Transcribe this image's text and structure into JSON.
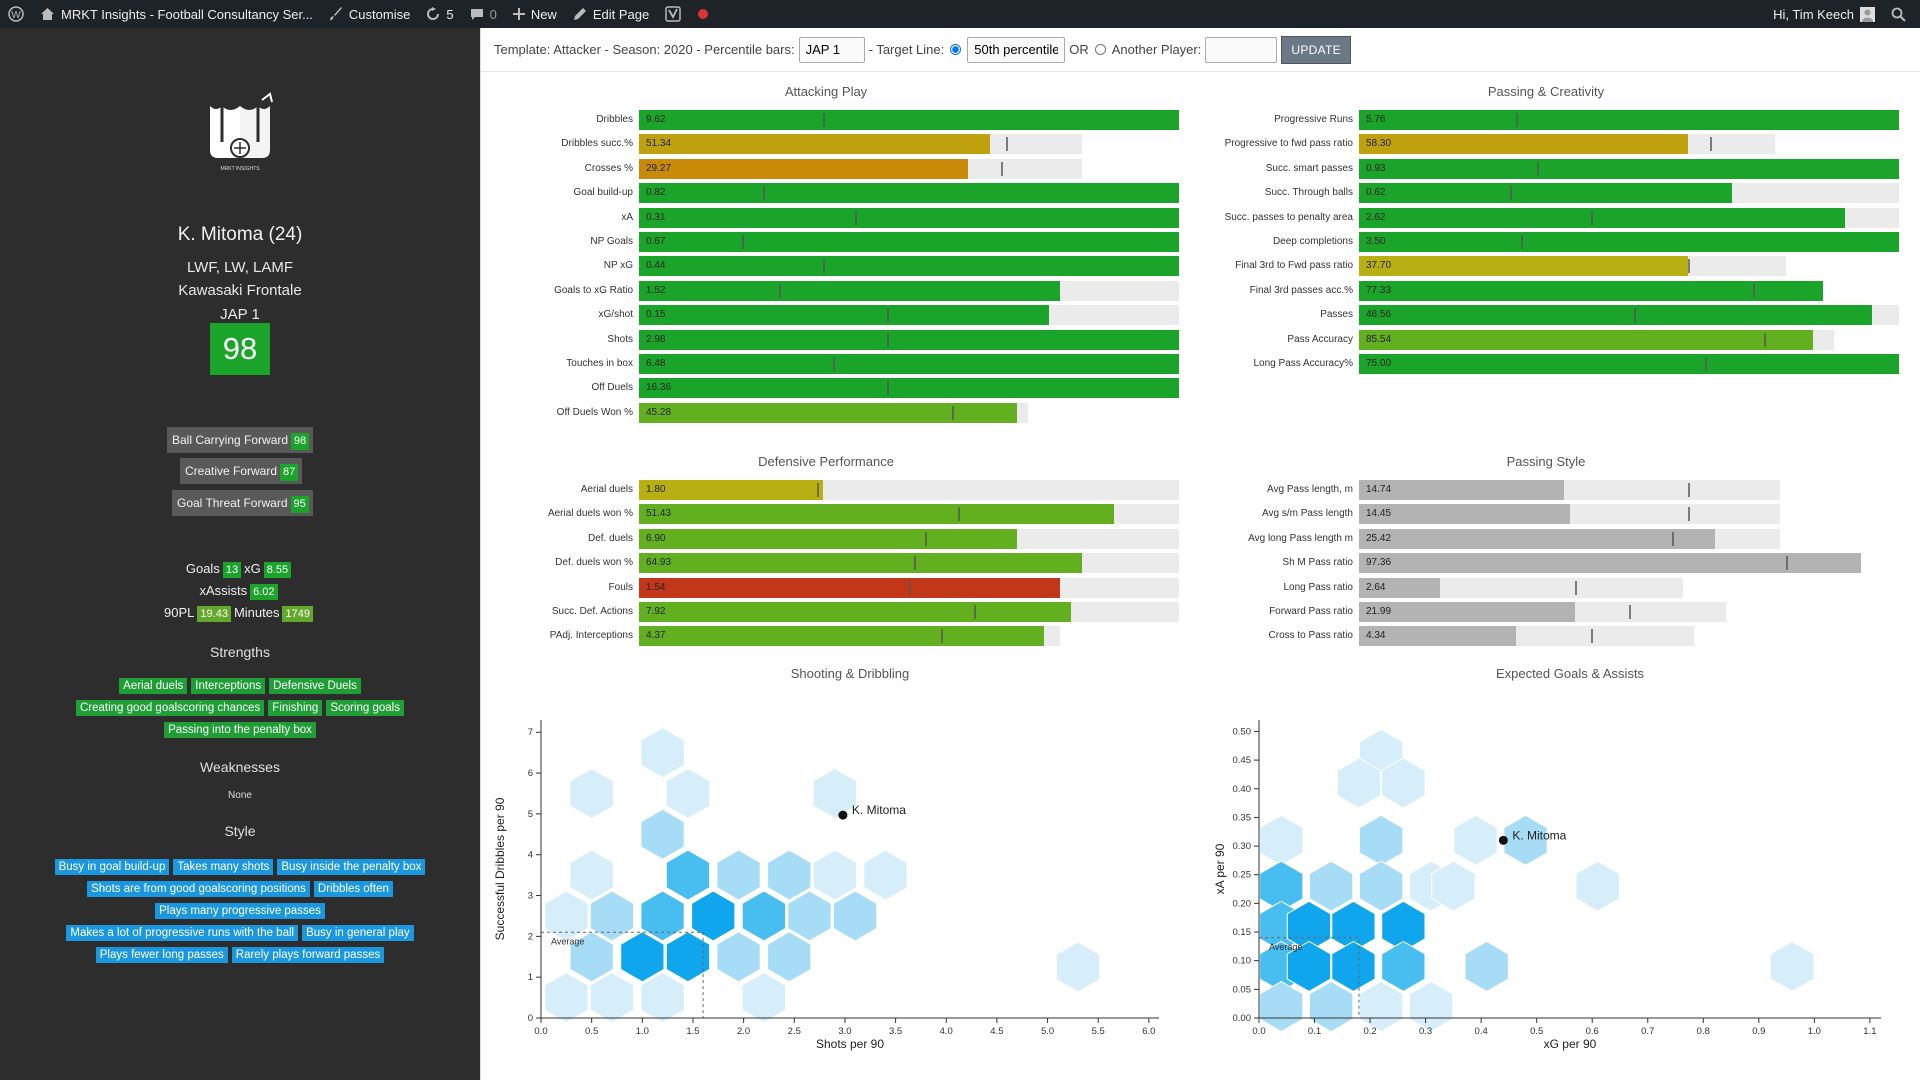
{
  "adminbar": {
    "site": "MRKT Insights - Football Consultancy Ser...",
    "customise": "Customise",
    "updates": "5",
    "comments": "0",
    "new": "New",
    "edit": "Edit Page",
    "greeting": "Hi, Tim Keech"
  },
  "template_bar": {
    "template_text": "Template: Attacker - Season: 2020 - Percentile bars:",
    "percentile_value": "JAP 1",
    "target_label": "- Target Line:",
    "target_value": "50th percentile",
    "or_label": "OR",
    "another_label": "Another Player:",
    "another_value": "",
    "update_label": "UPDATE"
  },
  "player": {
    "logo_text": "MRKT INSIGHTS",
    "name": "K. Mitoma (24)",
    "positions": "LWF, LW, LAMF",
    "club": "Kawasaki Frontale",
    "league": "JAP 1",
    "score": "98",
    "roles": [
      {
        "label": "Ball Carrying Forward",
        "score": "98"
      },
      {
        "label": "Creative Forward",
        "score": "87"
      },
      {
        "label": "Goal Threat Forward",
        "score": "95"
      }
    ],
    "stats": {
      "goals_label": "Goals",
      "goals": "13",
      "xg_label": "xG",
      "xg": "8.55",
      "xassists_label": "xAssists",
      "xassists": "6.02",
      "p90_label": "90PL",
      "p90": "19.43",
      "minutes_label": "Minutes",
      "minutes": "1749"
    },
    "strengths_title": "Strengths",
    "strengths": [
      [
        "Aerial duels",
        "Interceptions",
        "Defensive Duels"
      ],
      [
        "Creating good goalscoring chances",
        "Finishing",
        "Scoring goals"
      ],
      [
        "Passing into the penalty box"
      ]
    ],
    "weaknesses_title": "Weaknesses",
    "weaknesses": "None",
    "style_title": "Style",
    "style": [
      [
        "Busy in goal build-up",
        "Takes many shots",
        "Busy inside the penalty box"
      ],
      [
        "Shots are from good goalscoring positions",
        "Dribbles often"
      ],
      [
        "Plays many progressive passes"
      ],
      [
        "Makes a lot of progressive runs with the ball",
        "Busy in general play"
      ],
      [
        "Plays fewer long passes",
        "Rarely plays forward passes"
      ]
    ]
  },
  "colors": {
    "green": "#1aa52a",
    "lightgreen": "#62b020",
    "olive": "#b8b012",
    "gold": "#bfa10f",
    "orange": "#c98a0a",
    "red": "#c2361a",
    "grey": "#b3b3b3"
  },
  "panels": [
    {
      "title": "Attacking Play",
      "rows": [
        {
          "label": "Dribbles",
          "value": "9.62",
          "pct": 100,
          "track": 100,
          "avg": 34,
          "color": "green"
        },
        {
          "label": "Dribbles succ.%",
          "value": "51.34",
          "pct": 65,
          "track": 82,
          "avg": 68,
          "color": "gold"
        },
        {
          "label": "Crosses %",
          "value": "29.27",
          "pct": 61,
          "track": 82,
          "avg": 67,
          "color": "orange"
        },
        {
          "label": "Goal build-up",
          "value": "0.82",
          "pct": 100,
          "track": 100,
          "avg": 23,
          "color": "green"
        },
        {
          "label": "xA",
          "value": "0.31",
          "pct": 100,
          "track": 100,
          "avg": 40,
          "color": "green"
        },
        {
          "label": "NP Goals",
          "value": "0.67",
          "pct": 100,
          "track": 100,
          "avg": 19,
          "color": "green"
        },
        {
          "label": "NP xG",
          "value": "0.44",
          "pct": 100,
          "track": 100,
          "avg": 34,
          "color": "green"
        },
        {
          "label": "Goals to xG Ratio",
          "value": "1.52",
          "pct": 78,
          "track": 100,
          "avg": 26,
          "color": "green"
        },
        {
          "label": "xG/shot",
          "value": "0.15",
          "pct": 76,
          "track": 100,
          "avg": 46,
          "color": "green"
        },
        {
          "label": "Shots",
          "value": "2.98",
          "pct": 100,
          "track": 100,
          "avg": 46,
          "color": "green"
        },
        {
          "label": "Touches in box",
          "value": "6.48",
          "pct": 100,
          "track": 100,
          "avg": 36,
          "color": "green"
        },
        {
          "label": "Off Duels",
          "value": "16.36",
          "pct": 100,
          "track": 100,
          "avg": 46,
          "color": "green"
        },
        {
          "label": "Off Duels Won %",
          "value": "45.28",
          "pct": 70,
          "track": 72,
          "avg": 58,
          "color": "lightgreen"
        }
      ]
    },
    {
      "title": "Passing & Creativity",
      "rows": [
        {
          "label": "Progressive Runs",
          "value": "5.76",
          "pct": 100,
          "track": 100,
          "avg": 29,
          "color": "green"
        },
        {
          "label": "Progressive to fwd pass ratio",
          "value": "58.30",
          "pct": 61,
          "track": 77,
          "avg": 65,
          "color": "gold"
        },
        {
          "label": "Succ. smart passes",
          "value": "0.93",
          "pct": 100,
          "track": 100,
          "avg": 33,
          "color": "green"
        },
        {
          "label": "Succ. Through balls",
          "value": "0.62",
          "pct": 69,
          "track": 100,
          "avg": 28,
          "color": "green"
        },
        {
          "label": "Succ. passes to penalty area",
          "value": "2.62",
          "pct": 90,
          "track": 100,
          "avg": 43,
          "color": "green"
        },
        {
          "label": "Deep completions",
          "value": "3.50",
          "pct": 100,
          "track": 100,
          "avg": 30,
          "color": "green"
        },
        {
          "label": "Final 3rd to Fwd pass ratio",
          "value": "37.70",
          "pct": 61,
          "track": 79,
          "avg": 61,
          "color": "olive"
        },
        {
          "label": "Final 3rd passes acc.%",
          "value": "77.33",
          "pct": 86,
          "track": 86,
          "avg": 73,
          "color": "green"
        },
        {
          "label": "Passes",
          "value": "46.56",
          "pct": 95,
          "track": 100,
          "avg": 51,
          "color": "green"
        },
        {
          "label": "Pass Accuracy",
          "value": "85.54",
          "pct": 84,
          "track": 88,
          "avg": 75,
          "color": "lightgreen"
        },
        {
          "label": "Long Pass Accuracy%",
          "value": "75.00",
          "pct": 100,
          "track": 100,
          "avg": 64,
          "color": "green"
        }
      ]
    },
    {
      "title": "Defensive Performance",
      "rows": [
        {
          "label": "Aerial duels",
          "value": "1.80",
          "pct": 34,
          "track": 100,
          "avg": 33,
          "color": "olive"
        },
        {
          "label": "Aerial duels won %",
          "value": "51.43",
          "pct": 88,
          "track": 100,
          "avg": 59,
          "color": "lightgreen"
        },
        {
          "label": "Def. duels",
          "value": "6.90",
          "pct": 70,
          "track": 100,
          "avg": 53,
          "color": "lightgreen"
        },
        {
          "label": "Def. duels won %",
          "value": "64.93",
          "pct": 82,
          "track": 100,
          "avg": 51,
          "color": "lightgreen"
        },
        {
          "label": "Fouls",
          "value": "1.54",
          "pct": 78,
          "track": 100,
          "avg": 50,
          "color": "red"
        },
        {
          "label": "Succ. Def. Actions",
          "value": "7.92",
          "pct": 80,
          "track": 100,
          "avg": 62,
          "color": "lightgreen"
        },
        {
          "label": "PAdj. Interceptions",
          "value": "4.37",
          "pct": 75,
          "track": 78,
          "avg": 56,
          "color": "lightgreen"
        }
      ]
    },
    {
      "title": "Passing Style",
      "rows": [
        {
          "label": "Avg Pass length, m",
          "value": "14.74",
          "pct": 38,
          "track": 78,
          "avg": 61,
          "color": "grey"
        },
        {
          "label": "Avg s/m Pass length",
          "value": "14.45",
          "pct": 39,
          "track": 78,
          "avg": 61,
          "color": "grey"
        },
        {
          "label": "Avg long Pass length m",
          "value": "25.42",
          "pct": 66,
          "track": 78,
          "avg": 58,
          "color": "grey"
        },
        {
          "label": "Sh M Pass ratio",
          "value": "97.36",
          "pct": 93,
          "track": 93,
          "avg": 79,
          "color": "grey"
        },
        {
          "label": "Long Pass ratio",
          "value": "2.64",
          "pct": 15,
          "track": 60,
          "avg": 40,
          "color": "grey"
        },
        {
          "label": "Forward Pass ratio",
          "value": "21.99",
          "pct": 40,
          "track": 68,
          "avg": 50,
          "color": "grey"
        },
        {
          "label": "Cross to Pass ratio",
          "value": "4.34",
          "pct": 29,
          "track": 62,
          "avg": 43,
          "color": "grey"
        }
      ]
    }
  ],
  "chart_data": [
    {
      "type": "scatter",
      "title": "Shooting & Dribbling",
      "xlabel": "Shots per 90",
      "ylabel": "Successful Dribbles per 90",
      "xlim": [
        0,
        6.1
      ],
      "ylim": [
        0,
        7.3
      ],
      "xticks": [
        "0.0",
        "0.5",
        "1.0",
        "1.5",
        "2.0",
        "2.5",
        "3.0",
        "3.5",
        "4.0",
        "4.5",
        "5.0",
        "5.5",
        "6.0"
      ],
      "yticks": [
        "0",
        "1",
        "2",
        "3",
        "4",
        "5",
        "6",
        "7"
      ],
      "average": {
        "label": "Average",
        "x": 1.6,
        "y": 2.1
      },
      "player": {
        "name": "K. Mitoma",
        "x": 2.98,
        "y": 4.97
      },
      "hexbins": [
        [
          1.2,
          6.5,
          1
        ],
        [
          0.5,
          5.5,
          1
        ],
        [
          1.45,
          5.5,
          1
        ],
        [
          2.9,
          5.5,
          1
        ],
        [
          1.2,
          4.5,
          2
        ],
        [
          0.5,
          3.5,
          1
        ],
        [
          1.45,
          3.5,
          3
        ],
        [
          1.95,
          3.5,
          2
        ],
        [
          2.45,
          3.5,
          2
        ],
        [
          2.9,
          3.5,
          1
        ],
        [
          3.4,
          3.5,
          1
        ],
        [
          0.25,
          2.5,
          1
        ],
        [
          0.7,
          2.5,
          2
        ],
        [
          1.2,
          2.5,
          3
        ],
        [
          1.7,
          2.5,
          4
        ],
        [
          2.2,
          2.5,
          3
        ],
        [
          2.65,
          2.5,
          2
        ],
        [
          3.1,
          2.5,
          2
        ],
        [
          0.5,
          1.5,
          2
        ],
        [
          1.0,
          1.5,
          4
        ],
        [
          1.45,
          1.5,
          4
        ],
        [
          1.95,
          1.5,
          2
        ],
        [
          2.45,
          1.5,
          2
        ],
        [
          5.3,
          1.25,
          1
        ],
        [
          0.25,
          0.5,
          1
        ],
        [
          0.7,
          0.5,
          1
        ],
        [
          1.2,
          0.5,
          1
        ],
        [
          2.2,
          0.5,
          1
        ]
      ]
    },
    {
      "type": "scatter",
      "title": "Expected Goals & Assists",
      "xlabel": "xG per 90",
      "ylabel": "xA per 90",
      "xlim": [
        0,
        1.12
      ],
      "ylim": [
        0,
        0.52
      ],
      "xticks": [
        "0.0",
        "0.1",
        "0.2",
        "0.3",
        "0.4",
        "0.5",
        "0.6",
        "0.7",
        "0.8",
        "0.9",
        "1.0",
        "1.1"
      ],
      "yticks": [
        "0.00",
        "0.05",
        "0.10",
        "0.15",
        "0.20",
        "0.25",
        "0.30",
        "0.35",
        "0.40",
        "0.45",
        "0.50"
      ],
      "average": {
        "label": "Average",
        "x": 0.18,
        "y": 0.14
      },
      "player": {
        "name": "K. Mitoma",
        "x": 0.44,
        "y": 0.31
      },
      "hexbins": [
        [
          0.22,
          0.46,
          1
        ],
        [
          0.18,
          0.41,
          1
        ],
        [
          0.26,
          0.41,
          1
        ],
        [
          0.04,
          0.31,
          1
        ],
        [
          0.22,
          0.31,
          2
        ],
        [
          0.39,
          0.31,
          1
        ],
        [
          0.48,
          0.31,
          2
        ],
        [
          0.04,
          0.23,
          3
        ],
        [
          0.13,
          0.23,
          2
        ],
        [
          0.22,
          0.23,
          2
        ],
        [
          0.31,
          0.23,
          1
        ],
        [
          0.35,
          0.23,
          1
        ],
        [
          0.61,
          0.23,
          1
        ],
        [
          0.04,
          0.16,
          3
        ],
        [
          0.09,
          0.16,
          4
        ],
        [
          0.17,
          0.16,
          4
        ],
        [
          0.26,
          0.16,
          4
        ],
        [
          0.04,
          0.09,
          3
        ],
        [
          0.09,
          0.09,
          4
        ],
        [
          0.17,
          0.09,
          4
        ],
        [
          0.26,
          0.09,
          3
        ],
        [
          0.41,
          0.09,
          2
        ],
        [
          0.96,
          0.09,
          1
        ],
        [
          0.04,
          0.02,
          2
        ],
        [
          0.13,
          0.02,
          2
        ],
        [
          0.22,
          0.02,
          1
        ],
        [
          0.31,
          0.02,
          1
        ]
      ]
    }
  ]
}
